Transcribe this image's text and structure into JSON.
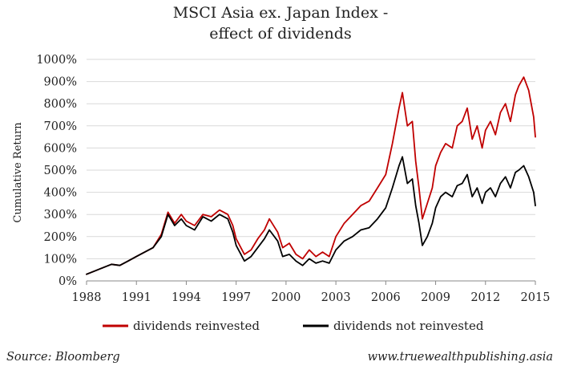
{
  "chart_data": {
    "type": "line",
    "title": "MSCI Asia ex. Japan Index -",
    "subtitle": "effect of dividends",
    "xlabel": "",
    "ylabel": "Cumulative Return",
    "xlim": [
      1988,
      2015
    ],
    "ylim": [
      0,
      1000
    ],
    "x_ticks": [
      "1988",
      "1991",
      "1994",
      "1997",
      "2000",
      "2003",
      "2006",
      "2009",
      "2012",
      "2015"
    ],
    "y_ticks": [
      "0%",
      "100%",
      "200%",
      "300%",
      "400%",
      "500%",
      "600%",
      "700%",
      "800%",
      "900%",
      "1000%"
    ],
    "grid": true,
    "legend_position": "bottom",
    "series": [
      {
        "name": "dividends reinvested",
        "color": "#c00000",
        "x": [
          1988.0,
          1988.5,
          1989.0,
          1989.5,
          1990.0,
          1990.5,
          1991.0,
          1991.5,
          1992.0,
          1992.5,
          1992.9,
          1993.3,
          1993.7,
          1994.0,
          1994.5,
          1995.0,
          1995.5,
          1996.0,
          1996.5,
          1996.8,
          1997.0,
          1997.5,
          1997.9,
          1998.3,
          1998.7,
          1999.0,
          1999.5,
          1999.8,
          2000.2,
          2000.6,
          2001.0,
          2001.4,
          2001.8,
          2002.2,
          2002.6,
          2003.0,
          2003.5,
          2004.0,
          2004.5,
          2005.0,
          2005.5,
          2006.0,
          2006.4,
          2006.8,
          2007.0,
          2007.3,
          2007.6,
          2007.8,
          2008.0,
          2008.2,
          2008.5,
          2008.8,
          2009.0,
          2009.3,
          2009.6,
          2010.0,
          2010.3,
          2010.6,
          2010.9,
          2011.2,
          2011.5,
          2011.8,
          2012.0,
          2012.3,
          2012.6,
          2012.9,
          2013.2,
          2013.5,
          2013.8,
          2014.0,
          2014.3,
          2014.6,
          2014.9,
          2015.0
        ],
        "values": [
          30,
          45,
          60,
          75,
          70,
          90,
          110,
          130,
          150,
          210,
          310,
          260,
          300,
          270,
          250,
          300,
          290,
          320,
          300,
          250,
          190,
          120,
          140,
          190,
          230,
          280,
          220,
          150,
          170,
          120,
          100,
          140,
          110,
          130,
          110,
          200,
          260,
          300,
          340,
          360,
          420,
          480,
          620,
          780,
          850,
          700,
          720,
          540,
          420,
          280,
          350,
          420,
          520,
          580,
          620,
          600,
          700,
          720,
          780,
          640,
          700,
          600,
          680,
          720,
          660,
          760,
          800,
          720,
          840,
          880,
          920,
          860,
          740,
          650
        ]
      },
      {
        "name": "dividends not reinvested",
        "color": "#000000",
        "x": [
          1988.0,
          1988.5,
          1989.0,
          1989.5,
          1990.0,
          1990.5,
          1991.0,
          1991.5,
          1992.0,
          1992.5,
          1992.9,
          1993.3,
          1993.7,
          1994.0,
          1994.5,
          1995.0,
          1995.5,
          1996.0,
          1996.5,
          1996.8,
          1997.0,
          1997.5,
          1997.9,
          1998.3,
          1998.7,
          1999.0,
          1999.5,
          1999.8,
          2000.2,
          2000.6,
          2001.0,
          2001.4,
          2001.8,
          2002.2,
          2002.6,
          2003.0,
          2003.5,
          2004.0,
          2004.5,
          2005.0,
          2005.5,
          2006.0,
          2006.4,
          2006.8,
          2007.0,
          2007.3,
          2007.6,
          2007.8,
          2008.0,
          2008.2,
          2008.5,
          2008.8,
          2009.0,
          2009.3,
          2009.6,
          2010.0,
          2010.3,
          2010.6,
          2010.9,
          2011.2,
          2011.5,
          2011.8,
          2012.0,
          2012.3,
          2012.6,
          2012.9,
          2013.2,
          2013.5,
          2013.8,
          2014.0,
          2014.3,
          2014.6,
          2014.9,
          2015.0
        ],
        "values": [
          30,
          45,
          60,
          75,
          70,
          90,
          110,
          130,
          150,
          200,
          300,
          250,
          280,
          250,
          230,
          290,
          270,
          300,
          280,
          220,
          160,
          90,
          110,
          150,
          190,
          230,
          180,
          110,
          120,
          90,
          70,
          100,
          80,
          90,
          80,
          140,
          180,
          200,
          230,
          240,
          280,
          330,
          420,
          520,
          560,
          440,
          460,
          340,
          260,
          160,
          200,
          260,
          330,
          380,
          400,
          380,
          430,
          440,
          480,
          380,
          420,
          350,
          400,
          420,
          380,
          440,
          470,
          420,
          490,
          500,
          520,
          470,
          400,
          340
        ]
      }
    ]
  },
  "footer": {
    "source": "Source: Bloomberg",
    "url": "www.truewealthpublishing.asia"
  }
}
